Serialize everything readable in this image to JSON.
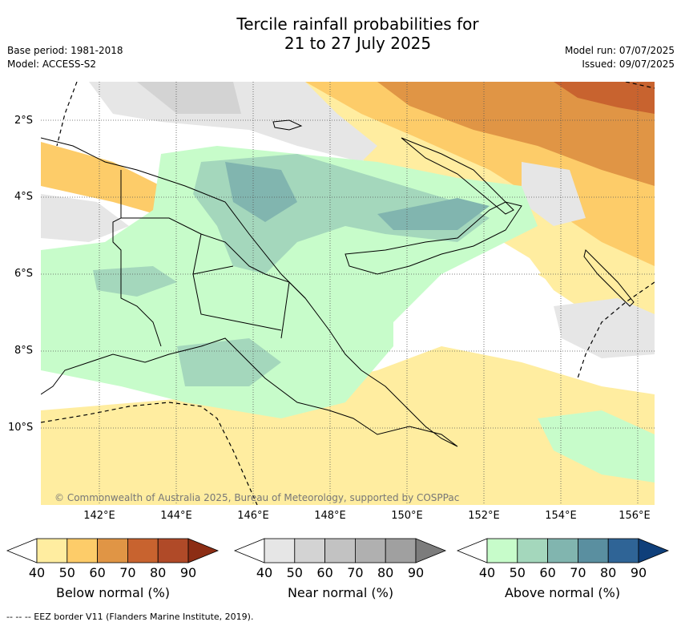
{
  "title_line1": "Tercile rainfall probabilities for",
  "title_line2": "21 to 27 July 2025",
  "base_period": "Base period: 1981-2018",
  "model": "Model: ACCESS-S2",
  "model_run": "Model run: 07/07/2025",
  "issued": "Issued: 09/07/2025",
  "lat_labels": [
    "2°S",
    "4°S",
    "6°S",
    "8°S",
    "10°S"
  ],
  "lon_labels": [
    "142°E",
    "144°E",
    "146°E",
    "148°E",
    "150°E",
    "152°E",
    "154°E",
    "156°E"
  ],
  "credit": "© Commonwealth of Australia 2025, Bureau of Meteorology, supported by COSPPac",
  "colorbars": [
    {
      "label": "Below normal (%)",
      "ticks": [
        "40",
        "50",
        "60",
        "70",
        "80",
        "90"
      ],
      "colors": [
        "#ffeda0",
        "#fdcc69",
        "#e09545",
        "#c8632f",
        "#b04a28",
        "#8c2d14"
      ]
    },
    {
      "label": "Near normal (%)",
      "ticks": [
        "40",
        "50",
        "60",
        "70",
        "80",
        "90"
      ],
      "colors": [
        "#e6e6e6",
        "#d3d3d3",
        "#c2c2c2",
        "#b0b0b0",
        "#a0a0a0",
        "#7c7c7c"
      ]
    },
    {
      "label": "Above normal (%)",
      "ticks": [
        "40",
        "50",
        "60",
        "70",
        "80",
        "90"
      ],
      "colors": [
        "#c7fcca",
        "#a4d7bc",
        "#81b5af",
        "#5a8fa0",
        "#2f6496",
        "#0f3f7a"
      ]
    }
  ],
  "footer": "-- -- -- EEZ border V11 (Flanders Marine Institute, 2019)."
}
